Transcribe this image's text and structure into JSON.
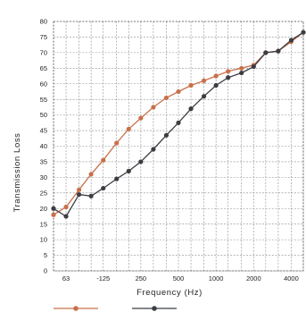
{
  "chart_data": {
    "type": "line",
    "title": "",
    "xlabel": "Frequency (Hz)",
    "ylabel": "Transmission Loss",
    "x_scale": "log",
    "xlim": [
      50,
      5000
    ],
    "ylim": [
      0,
      80
    ],
    "y_ticks": [
      "0",
      "5",
      "10",
      "15",
      "20",
      "25",
      "30",
      "35",
      "40",
      "45",
      "50",
      "55",
      "60",
      "65",
      "70",
      "75",
      "80"
    ],
    "x_tick_labels": [
      {
        "x": 63,
        "label": "63"
      },
      {
        "x": 125,
        "label": "-125"
      },
      {
        "x": 250,
        "label": "250"
      },
      {
        "x": 500,
        "label": "500"
      },
      {
        "x": 1000,
        "label": "1000"
      },
      {
        "x": 2000,
        "label": "2000"
      },
      {
        "x": 4000,
        "label": "4000"
      }
    ],
    "grid": true,
    "legend_placement": "bottom",
    "x": [
      50,
      63,
      80,
      100,
      125,
      160,
      200,
      250,
      315,
      400,
      500,
      630,
      800,
      1000,
      1250,
      1600,
      2000,
      2500,
      3150,
      4000,
      5000
    ],
    "series": [
      {
        "color": "#c8704a",
        "values": [
          18,
          20.5,
          26,
          31,
          35.5,
          41,
          45.5,
          49,
          52.5,
          55.5,
          57.5,
          59.5,
          61,
          62.5,
          64,
          65,
          66,
          70,
          70.5,
          73.5,
          76.5
        ]
      },
      {
        "color": "#3b3d42",
        "values": [
          20,
          17.5,
          24.5,
          24,
          26.5,
          29.5,
          32,
          35,
          39,
          43.5,
          47.5,
          52,
          56,
          59.5,
          62,
          63.5,
          65.5,
          70,
          70.5,
          74,
          76.5
        ]
      }
    ]
  }
}
